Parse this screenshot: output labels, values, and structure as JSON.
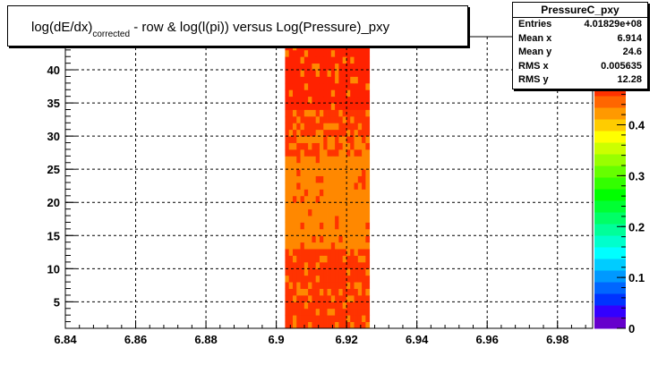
{
  "title": {
    "main": "log(dE/dx)",
    "subscript": "corrected",
    "rest": " - row & log(l(pi)) versus Log(Pressure)_pxy"
  },
  "stats": {
    "name": "PressureC_pxy",
    "rows": [
      {
        "label": "Entries",
        "value": "4.01829e+08"
      },
      {
        "label": "Mean x",
        "value": "6.914"
      },
      {
        "label": "Mean y",
        "value": "24.6"
      },
      {
        "label": "RMS x",
        "value": "0.005635"
      },
      {
        "label": "RMS y",
        "value": "12.28"
      }
    ]
  },
  "chart_data": {
    "type": "heatmap",
    "xlim": [
      6.84,
      6.99
    ],
    "ylim": [
      1,
      45
    ],
    "x_ticks": [
      6.84,
      6.86,
      6.88,
      6.9,
      6.92,
      6.94,
      6.96,
      6.98
    ],
    "x_tick_labels": [
      "6.84",
      "6.86",
      "6.88",
      "6.9",
      "6.92",
      "6.94",
      "6.96",
      "6.98"
    ],
    "y_ticks": [
      5,
      10,
      15,
      20,
      25,
      30,
      35,
      40
    ],
    "y_tick_labels": [
      "5",
      "10",
      "15",
      "20",
      "25",
      "30",
      "35",
      "40"
    ],
    "grid": true,
    "occupied_x_range": [
      6.9025,
      6.9265
    ],
    "empty_y_band": [
      13.5,
      14.5
    ],
    "colorbar": {
      "range": [
        0,
        0.48
      ],
      "ticks": [
        0,
        0.1,
        0.2,
        0.3,
        0.4
      ],
      "tick_labels": [
        "0",
        "0.1",
        "0.2",
        "0.3",
        "0.4"
      ],
      "palette": [
        "#6600cc",
        "#3300ff",
        "#0033ff",
        "#0066ff",
        "#0099ff",
        "#00ccff",
        "#00ffff",
        "#00ffcc",
        "#00ff99",
        "#00ff66",
        "#00ff33",
        "#00ff00",
        "#33ff00",
        "#66ff00",
        "#99ff00",
        "#ccff00",
        "#ffff00",
        "#ffcc00",
        "#ff9900",
        "#ff6600",
        "#ff3300"
      ]
    },
    "cell_colors": {
      "low": "#ff8800",
      "high": "#ff3300",
      "top": "#ff2200"
    }
  }
}
